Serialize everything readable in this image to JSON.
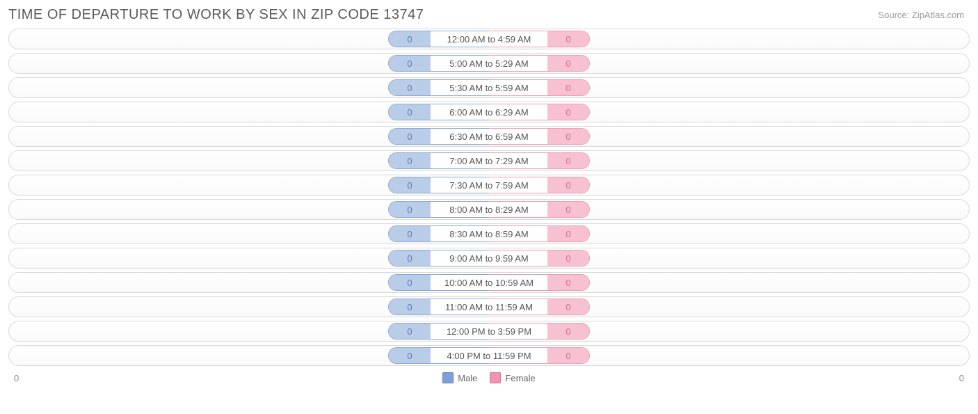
{
  "title": "TIME OF DEPARTURE TO WORK BY SEX IN ZIP CODE 13747",
  "source": "Source: ZipAtlas.com",
  "colors": {
    "male_fill": "#b9cce8",
    "male_border": "#8fa9d0",
    "male_text": "#5a7db5",
    "female_fill": "#f7c1d1",
    "female_border": "#e9a0b6",
    "female_text": "#d06f8c",
    "label_border_left": "#8fa9d0",
    "label_border_right": "#e9a0b6",
    "row_border": "#d8d8d8",
    "title_color": "#5a5a5a",
    "source_color": "#9a9a9a"
  },
  "axis": {
    "left": "0",
    "right": "0"
  },
  "legend": [
    {
      "label": "Male",
      "fill": "#7ea0d4",
      "border": "#5f84bb"
    },
    {
      "label": "Female",
      "fill": "#f194b0",
      "border": "#d87494"
    }
  ],
  "rows": [
    {
      "male": 0,
      "label": "12:00 AM to 4:59 AM",
      "female": 0
    },
    {
      "male": 0,
      "label": "5:00 AM to 5:29 AM",
      "female": 0
    },
    {
      "male": 0,
      "label": "5:30 AM to 5:59 AM",
      "female": 0
    },
    {
      "male": 0,
      "label": "6:00 AM to 6:29 AM",
      "female": 0
    },
    {
      "male": 0,
      "label": "6:30 AM to 6:59 AM",
      "female": 0
    },
    {
      "male": 0,
      "label": "7:00 AM to 7:29 AM",
      "female": 0
    },
    {
      "male": 0,
      "label": "7:30 AM to 7:59 AM",
      "female": 0
    },
    {
      "male": 0,
      "label": "8:00 AM to 8:29 AM",
      "female": 0
    },
    {
      "male": 0,
      "label": "8:30 AM to 8:59 AM",
      "female": 0
    },
    {
      "male": 0,
      "label": "9:00 AM to 9:59 AM",
      "female": 0
    },
    {
      "male": 0,
      "label": "10:00 AM to 10:59 AM",
      "female": 0
    },
    {
      "male": 0,
      "label": "11:00 AM to 11:59 AM",
      "female": 0
    },
    {
      "male": 0,
      "label": "12:00 PM to 3:59 PM",
      "female": 0
    },
    {
      "male": 0,
      "label": "4:00 PM to 11:59 PM",
      "female": 0
    }
  ]
}
